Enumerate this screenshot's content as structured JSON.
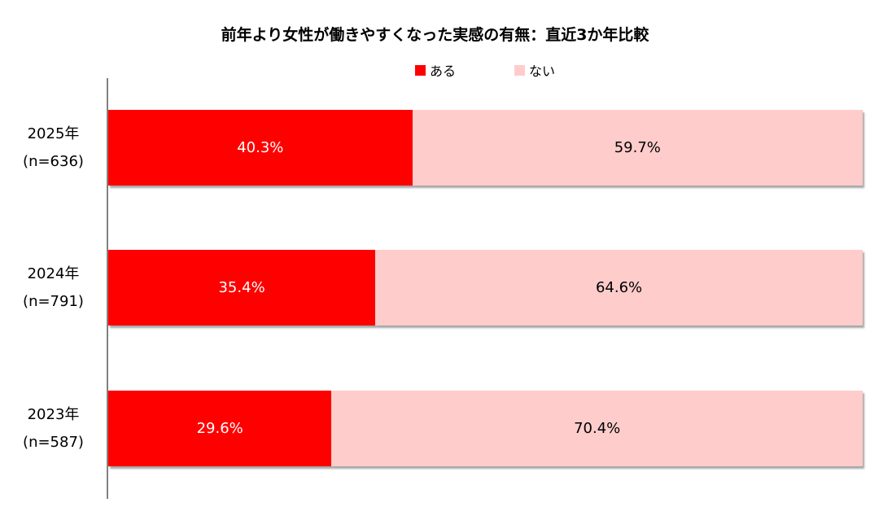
{
  "chart_data": {
    "type": "bar",
    "orientation": "horizontal",
    "stacked": true,
    "title": "前年より女性が働きやすくなった実感の有無：直近3か年比較",
    "categories": [
      {
        "year": "2025年",
        "n": "(n=636)"
      },
      {
        "year": "2024年",
        "n": "(n=791)"
      },
      {
        "year": "2023年",
        "n": "(n=587)"
      }
    ],
    "series": [
      {
        "name": "ある",
        "color": "#ff0000",
        "label_color": "#ffffff",
        "values": [
          40.3,
          35.4,
          29.6
        ],
        "labels": [
          "40.3%",
          "35.4%",
          "29.6%"
        ]
      },
      {
        "name": "ない",
        "color": "#ffcccc",
        "label_color": "#000000",
        "values": [
          59.7,
          64.6,
          70.4
        ],
        "labels": [
          "59.7%",
          "64.6%",
          "70.4%"
        ]
      }
    ],
    "xlim": [
      0,
      100
    ],
    "legend_position": "top-center",
    "grid": false
  }
}
